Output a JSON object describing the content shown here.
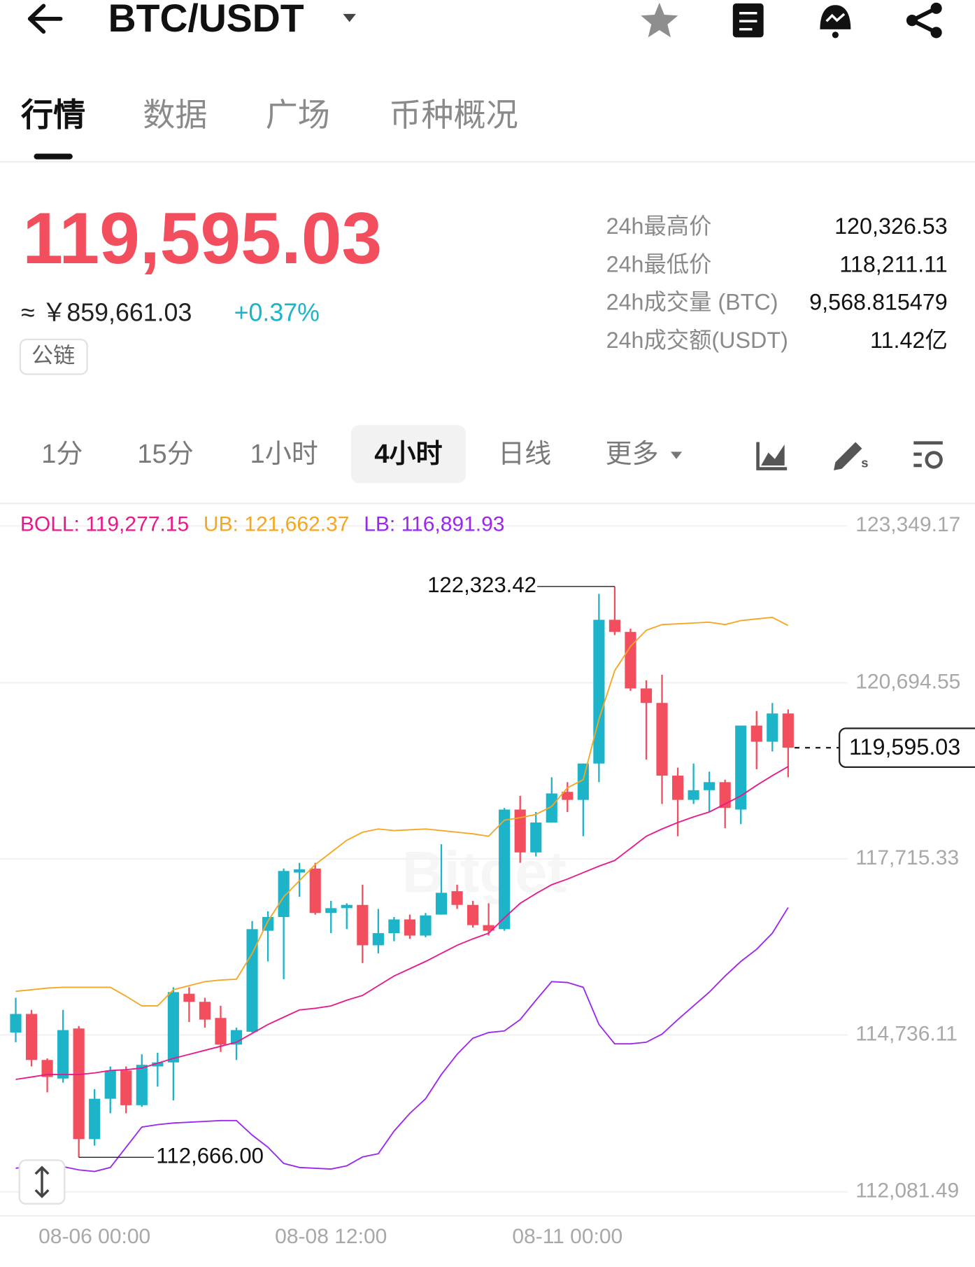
{
  "header": {
    "title": "BTC/USDT"
  },
  "tabs": [
    "行情",
    "数据",
    "广场",
    "币种概况"
  ],
  "active_tab": 0,
  "price": {
    "last": "119,595.03",
    "cny": "≈ ￥859,661.03",
    "change": "+0.37%",
    "tag": "公链"
  },
  "stats": [
    {
      "label": "24h最高价",
      "value": "120,326.53"
    },
    {
      "label": "24h最低价",
      "value": "118,211.11"
    },
    {
      "label": "24h成交量 (BTC)",
      "value": "9,568.815479"
    },
    {
      "label": "24h成交额(USDT)",
      "value": "11.42亿"
    }
  ],
  "intervals": [
    "1分",
    "15分",
    "1小时",
    "4小时",
    "日线",
    "更多"
  ],
  "active_interval": 3,
  "chart_data": {
    "type": "candlestick",
    "categories": [
      null,
      null,
      null,
      null,
      null,
      "08-06 00:00",
      null,
      null,
      null,
      null,
      null,
      null,
      null,
      null,
      null,
      null,
      null,
      null,
      null,
      null,
      "08-08 12:00",
      null,
      null,
      null,
      null,
      null,
      null,
      null,
      null,
      null,
      null,
      null,
      null,
      null,
      null,
      "08-11 00:00",
      null,
      null,
      null,
      null,
      null,
      null,
      null,
      null,
      null,
      null,
      null,
      null,
      null,
      null
    ],
    "candles": {
      "open": [
        114777,
        115091,
        114312,
        113998,
        114845,
        112973,
        113656,
        114134,
        113547,
        114203,
        114271,
        115433,
        115296,
        115023,
        114572,
        114790,
        116499,
        116731,
        117483,
        117551,
        116799,
        116881,
        116936,
        116253,
        116458,
        116690,
        116417,
        116772,
        117168,
        116936,
        116594,
        116526,
        118549,
        117824,
        118330,
        118849,
        118713,
        119328,
        121760,
        121555,
        120599,
        120353,
        119123,
        118713,
        118877,
        119013,
        118549,
        119970,
        119697,
        120175
      ],
      "high": [
        115364,
        115159,
        114339,
        115159,
        114886,
        113820,
        114203,
        114203,
        114408,
        114435,
        115542,
        115542,
        115364,
        115228,
        114859,
        116663,
        116827,
        117551,
        117647,
        117647,
        117004,
        116963,
        117278,
        116868,
        116731,
        116772,
        116799,
        117961,
        117278,
        117004,
        116963,
        118576,
        118781,
        118508,
        119095,
        119013,
        119328,
        122198,
        122323.42,
        121610,
        120735,
        120831,
        119259,
        119328,
        119191,
        119054,
        119970,
        120216,
        120353,
        120243
      ],
      "low": [
        114613,
        114203,
        113765,
        113929,
        112666,
        112863,
        113410,
        113410,
        113519,
        113861,
        113629,
        114954,
        114859,
        114449,
        114312,
        114777,
        115979,
        115679,
        117073,
        116772,
        116458,
        116526,
        115952,
        116116,
        116321,
        116362,
        116389,
        116772,
        116868,
        116553,
        116417,
        116499,
        117647,
        117756,
        118330,
        118508,
        118098,
        119013,
        121501,
        120558,
        119396,
        118644,
        118098,
        118644,
        118508,
        118234,
        118303,
        119232,
        119533,
        119095
      ],
      "close": [
        115091,
        114312,
        114025,
        114818,
        112973,
        113656,
        114134,
        113547,
        114230,
        114271,
        115460,
        115296,
        114995,
        114572,
        114818,
        116526,
        116731,
        117510,
        117537,
        116799,
        116881,
        116936,
        116253,
        116458,
        116690,
        116417,
        116758,
        117141,
        116936,
        116594,
        116499,
        118549,
        117824,
        118330,
        118822,
        118713,
        119328,
        121760,
        121555,
        120599,
        120353,
        119123,
        118713,
        118877,
        119013,
        118576,
        119970,
        119697,
        120175,
        119595.03
      ]
    },
    "up_color": "#1db4c9",
    "down_color": "#f24e5d",
    "series": [
      {
        "name": "BOLL: 119,277.15",
        "color": "#e8198b",
        "values": [
          113984,
          114025,
          114066,
          114066,
          114066,
          114093,
          114134,
          114148,
          114175,
          114257,
          114339,
          114408,
          114476,
          114544,
          114613,
          114763,
          114913,
          115036,
          115159,
          115187,
          115228,
          115323,
          115405,
          115569,
          115733,
          115856,
          115979,
          116116,
          116253,
          116362,
          116458,
          116717,
          116963,
          117127,
          117278,
          117373,
          117483,
          117592,
          117688,
          117893,
          118098,
          118221,
          118330,
          118426,
          118508,
          118644,
          118781,
          118959,
          119123,
          119277.15
        ]
      },
      {
        "name": "UB: 121,662.37",
        "color": "#f5a623",
        "values": [
          115474,
          115501,
          115528,
          115542,
          115542,
          115542,
          115542,
          115392,
          115228,
          115228,
          115501,
          115569,
          115638,
          115665,
          115679,
          116116,
          116663,
          117073,
          117346,
          117619,
          117824,
          118029,
          118166,
          118221,
          118193,
          118207,
          118221,
          118193,
          118166,
          118139,
          118098,
          118371,
          118412,
          118467,
          118603,
          118918,
          119054,
          120079,
          120899,
          121309,
          121583,
          121678,
          121692,
          121706,
          121719,
          121678,
          121747,
          121774,
          121801,
          121662.37
        ]
      },
      {
        "name": "LB: 116,891.93",
        "color": "#9b27ef",
        "values": [
          112481,
          112522,
          112563,
          112508,
          112453,
          112426,
          112494,
          112836,
          113178,
          113219,
          113246,
          113260,
          113273,
          113287,
          113287,
          113041,
          112836,
          112563,
          112494,
          112481,
          112467,
          112522,
          112672,
          112727,
          113109,
          113410,
          113656,
          114066,
          114408,
          114681,
          114777,
          114804,
          114995,
          115323,
          115638,
          115624,
          115542,
          114913,
          114585,
          114585,
          114613,
          114749,
          114995,
          115228,
          115460,
          115733,
          115979,
          116184,
          116458,
          116891.93
        ]
      }
    ],
    "ylim": [
      111674,
      123701
    ],
    "yticks": [
      {
        "value": 123349.17,
        "label": "123,349.17"
      },
      {
        "value": 120694.55,
        "label": "120,694.55"
      },
      {
        "value": 117715.33,
        "label": "117,715.33"
      },
      {
        "value": 114736.11,
        "label": "114,736.11"
      },
      {
        "value": 112081.49,
        "label": "112,081.49"
      }
    ],
    "grid": true,
    "annotations": {
      "high": "122,323.42",
      "low": "112,666.00",
      "last": "119,595.03"
    },
    "watermark": "Bitget"
  }
}
